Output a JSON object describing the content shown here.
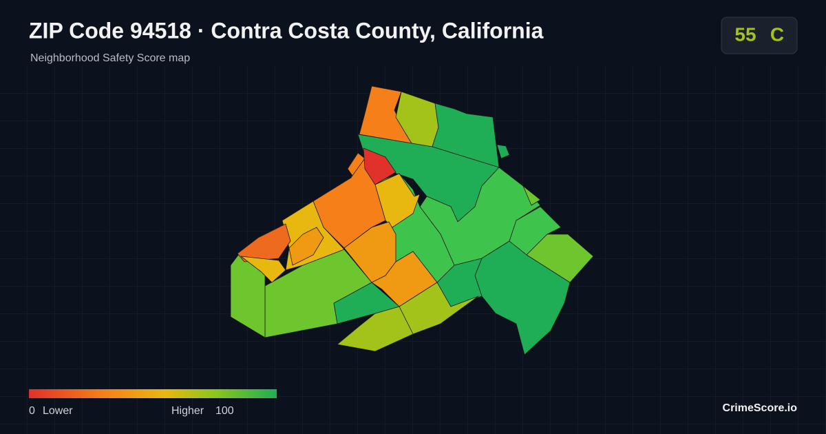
{
  "header": {
    "title": "ZIP Code 94518 · Contra Costa County, California",
    "subtitle": "Neighborhood Safety Score map"
  },
  "score": {
    "value": 55,
    "grade": "C"
  },
  "legend": {
    "min": 0,
    "min_label": "Lower",
    "max_label": "Higher",
    "max": 100
  },
  "footer": {
    "brand": "CrimeScore.io"
  }
}
